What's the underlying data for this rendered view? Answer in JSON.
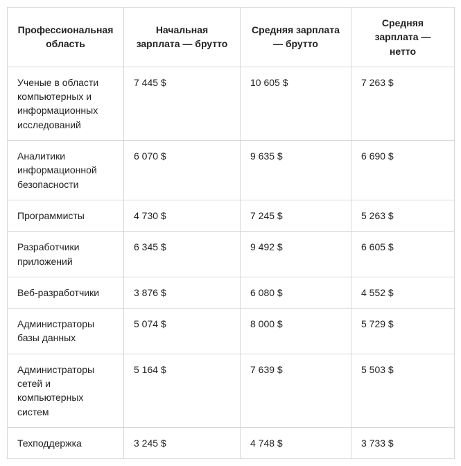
{
  "table": {
    "columns": [
      "Профессиональная область",
      "Начальная зарплата — брутто",
      "Средняя зарплата — брутто",
      "Средняя зарплата — нетто"
    ],
    "rows": [
      [
        "Ученые в области компьютерных и информационных исследований",
        "7 445 $",
        "10 605 $",
        "7 263 $"
      ],
      [
        "Аналитики информационной безопасности",
        "6 070 $",
        "9 635 $",
        "6 690 $"
      ],
      [
        "Программисты",
        "4 730 $",
        "7 245 $",
        "5 263 $"
      ],
      [
        "Разработчики приложений",
        "6 345 $",
        "9 492 $",
        "6 605 $"
      ],
      [
        "Веб-разработчики",
        "3 876 $",
        "6 080 $",
        "4 552 $"
      ],
      [
        "Администраторы базы данных",
        "5 074 $",
        "8 000 $",
        "5 729 $"
      ],
      [
        "Администраторы сетей и компьютерных систем",
        "5 164 $",
        "7 639 $",
        "5 503 $"
      ],
      [
        "Техподдержка",
        "3 245 $",
        "4 748 $",
        "3 733 $"
      ]
    ]
  }
}
